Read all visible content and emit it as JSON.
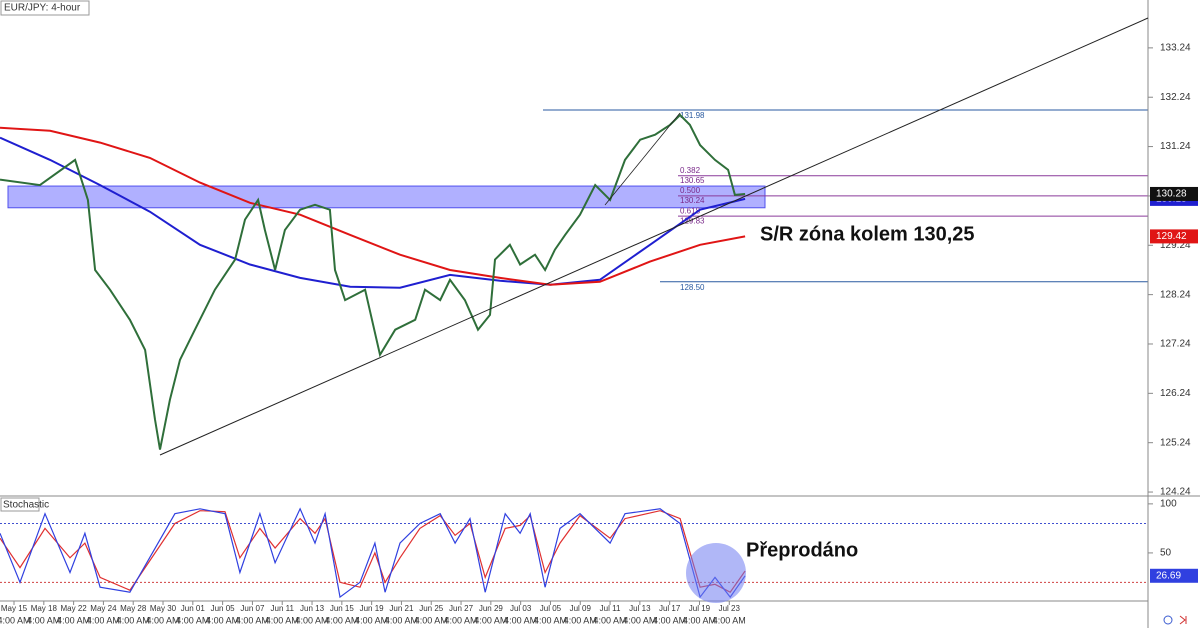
{
  "chart_data": [
    {
      "type": "line",
      "title": "EUR/JPY: 4-hour",
      "xlim": [
        -0.47,
        38.05
      ],
      "ylim": [
        124.18,
        134.21
      ],
      "yticks": [
        124.24,
        125.24,
        126.24,
        127.24,
        128.24,
        129.24,
        130.24,
        131.24,
        132.24,
        133.24
      ],
      "grid": false,
      "zone": [
        130.0,
        130.44
      ],
      "range_lines": [
        131.98,
        {
          "value": 128.5,
          "label": "128.50"
        }
      ],
      "fib_levels": [
        {
          "ratio": "0.382",
          "value": 130.65
        },
        {
          "ratio": "0.500",
          "value": 130.24
        },
        {
          "ratio": "0.618",
          "value": 129.83
        }
      ],
      "annotation": "S/R zóna kolem 130,25",
      "series": [
        {
          "color": "#1f1fd0",
          "badge": true,
          "x": [
            -0.47,
            1.21,
            2.89,
            4.56,
            6.24,
            7.92,
            9.6,
            11.28,
            12.95,
            14.63,
            16.31,
            17.99,
            19.66,
            21.34,
            23.02,
            24.53
          ],
          "values": [
            131.42,
            130.97,
            130.46,
            129.92,
            129.25,
            128.85,
            128.58,
            128.4,
            128.38,
            128.64,
            128.52,
            128.44,
            128.54,
            129.25,
            129.96,
            130.18
          ]
        },
        {
          "color": "#e01515",
          "badge": true,
          "x": [
            -0.47,
            1.21,
            2.89,
            4.56,
            6.24,
            7.92,
            9.6,
            11.28,
            12.95,
            14.63,
            16.31,
            17.99,
            19.66,
            21.34,
            23.02,
            24.53
          ],
          "values": [
            131.62,
            131.56,
            131.32,
            131.01,
            130.51,
            130.1,
            129.86,
            129.45,
            129.05,
            128.74,
            128.58,
            128.44,
            128.5,
            128.91,
            129.25,
            129.42
          ]
        },
        {
          "color": "#2f6f3a",
          "badge": true,
          "x": [
            -0.47,
            0.87,
            2.05,
            2.48,
            2.72,
            3.22,
            3.89,
            4.4,
            4.73,
            4.9,
            5.23,
            5.57,
            6.07,
            6.74,
            7.42,
            7.75,
            8.19,
            8.42,
            8.76,
            9.09,
            9.6,
            10.1,
            10.6,
            10.77,
            11.11,
            11.78,
            12.28,
            12.79,
            13.46,
            13.79,
            14.3,
            14.63,
            15.13,
            15.57,
            15.97,
            16.14,
            16.64,
            16.98,
            17.48,
            17.82,
            18.15,
            18.49,
            18.99,
            19.5,
            20.0,
            20.5,
            21.01,
            21.51,
            22.01,
            22.35,
            22.68,
            23.02,
            23.52,
            23.96,
            24.19,
            24.53
          ],
          "values": [
            130.57,
            130.46,
            130.97,
            130.16,
            128.74,
            128.34,
            127.73,
            127.12,
            125.71,
            125.1,
            126.11,
            126.92,
            127.53,
            128.34,
            128.95,
            129.76,
            130.16,
            129.55,
            128.74,
            129.55,
            129.96,
            130.06,
            129.96,
            128.74,
            128.13,
            128.34,
            127.02,
            127.53,
            127.73,
            128.34,
            128.13,
            128.54,
            128.13,
            127.53,
            127.83,
            128.95,
            129.25,
            128.85,
            129.05,
            128.74,
            129.15,
            129.45,
            129.86,
            130.46,
            130.16,
            130.97,
            131.38,
            131.48,
            131.68,
            131.88,
            131.68,
            131.27,
            130.97,
            130.77,
            130.26,
            130.28
          ]
        }
      ]
    },
    {
      "type": "line",
      "title": "Stochastic",
      "xlim": [
        -0.47,
        38.05
      ],
      "ylim": [
        2,
        107
      ],
      "yticks": [
        50,
        100
      ],
      "levels": [
        20,
        80
      ],
      "xticks": [
        {
          "value": 0,
          "label": "May 15"
        },
        {
          "value": 1,
          "label": "May 18"
        },
        {
          "value": 2,
          "label": "May 22"
        },
        {
          "value": 3,
          "label": "May 24"
        },
        {
          "value": 4,
          "label": "May 28"
        },
        {
          "value": 5,
          "label": "May 30"
        },
        {
          "value": 6,
          "label": "Jun 01"
        },
        {
          "value": 7,
          "label": "Jun 05"
        },
        {
          "value": 8,
          "label": "Jun 07"
        },
        {
          "value": 9,
          "label": "Jun 11"
        },
        {
          "value": 10,
          "label": "Jun 13"
        },
        {
          "value": 11,
          "label": "Jun 15"
        },
        {
          "value": 12,
          "label": "Jun 19"
        },
        {
          "value": 13,
          "label": "Jun 21"
        },
        {
          "value": 14,
          "label": "Jun 25"
        },
        {
          "value": 15,
          "label": "Jun 27"
        },
        {
          "value": 16,
          "label": "Jun 29"
        },
        {
          "value": 17,
          "label": "Jul 03"
        },
        {
          "value": 18,
          "label": "Jul 05"
        },
        {
          "value": 19,
          "label": "Jul 09"
        },
        {
          "value": 20,
          "label": "Jul 11"
        },
        {
          "value": 21,
          "label": "Jul 13"
        },
        {
          "value": 22,
          "label": "Jul 17"
        },
        {
          "value": 23,
          "label": "Jul 19"
        },
        {
          "value": 24,
          "label": "Jul 23"
        }
      ],
      "x_sublabel": "4:00 AM",
      "annotation": "Přeprodáno",
      "series": [
        {
          "color": "#e03030",
          "badge": false,
          "x": [
            -0.47,
            0.2,
            1.04,
            1.88,
            2.38,
            2.89,
            3.89,
            5.4,
            6.24,
            7.08,
            7.58,
            8.25,
            8.76,
            9.6,
            10.1,
            10.44,
            10.94,
            11.61,
            12.11,
            12.45,
            12.95,
            13.62,
            14.3,
            14.8,
            15.3,
            15.81,
            16.48,
            16.98,
            17.32,
            17.82,
            18.32,
            18.99,
            20.0,
            20.5,
            21.68,
            22.35,
            23.02,
            23.52,
            24.03,
            24.53
          ],
          "values": [
            65,
            35,
            75,
            45,
            60,
            25,
            12,
            80,
            93,
            92,
            45,
            75,
            55,
            85,
            70,
            85,
            20,
            15,
            50,
            20,
            45,
            75,
            88,
            68,
            80,
            25,
            75,
            78,
            88,
            30,
            60,
            88,
            65,
            85,
            93,
            85,
            15,
            18,
            10,
            31.6
          ]
        },
        {
          "color": "#3040e0",
          "badge": true,
          "x": [
            -0.47,
            0.2,
            1.04,
            1.88,
            2.38,
            2.89,
            3.89,
            5.4,
            6.24,
            7.08,
            7.58,
            8.25,
            8.76,
            9.6,
            10.1,
            10.44,
            10.94,
            11.61,
            12.11,
            12.45,
            12.95,
            13.62,
            14.3,
            14.8,
            15.3,
            15.81,
            16.48,
            16.98,
            17.32,
            17.82,
            18.32,
            18.99,
            20.0,
            20.5,
            21.68,
            22.35,
            23.02,
            23.52,
            24.03,
            24.53
          ],
          "values": [
            70,
            20,
            90,
            30,
            70,
            15,
            10,
            90,
            95,
            90,
            30,
            90,
            40,
            95,
            60,
            90,
            5,
            20,
            60,
            10,
            60,
            80,
            90,
            60,
            85,
            10,
            90,
            70,
            90,
            15,
            75,
            90,
            60,
            90,
            95,
            80,
            5,
            25,
            5,
            26.69
          ]
        }
      ]
    }
  ]
}
